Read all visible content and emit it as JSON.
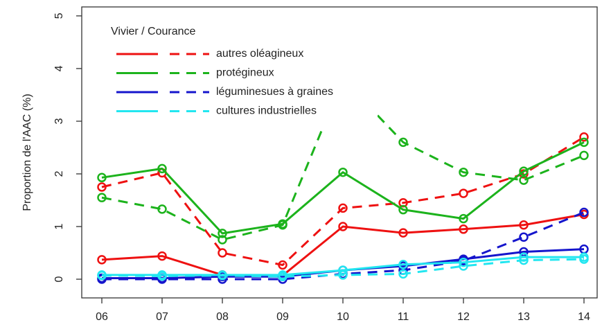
{
  "chart_data": {
    "type": "line",
    "y_label": "Proportion de l'AAC (%)",
    "legend_title": "Vivier / Courance",
    "categories": [
      "06",
      "07",
      "08",
      "09",
      "10",
      "11",
      "12",
      "13",
      "14"
    ],
    "series": [
      {
        "name": "autres oléagineux",
        "color": "#ee1111",
        "solid": [
          0.37,
          0.44,
          0.08,
          0.07,
          1.0,
          0.88,
          0.95,
          1.03,
          1.23
        ],
        "dashed": [
          1.75,
          2.02,
          0.5,
          0.27,
          1.35,
          1.45,
          1.63,
          2.0,
          2.7
        ]
      },
      {
        "name": "protégineux",
        "color": "#1cb31c",
        "solid": [
          1.93,
          2.1,
          0.87,
          1.05,
          2.03,
          1.32,
          1.15,
          2.05,
          2.6
        ],
        "dashed": [
          1.55,
          1.33,
          0.75,
          1.03,
          3.8,
          2.6,
          2.03,
          1.88,
          2.35
        ]
      },
      {
        "name": "léguminesues à graines",
        "color": "#1515cc",
        "solid": [
          0.02,
          0.02,
          0.05,
          0.05,
          0.17,
          0.25,
          0.38,
          0.52,
          0.57
        ],
        "dashed": [
          0.0,
          0.0,
          0.0,
          0.0,
          0.1,
          0.17,
          0.35,
          0.8,
          1.27
        ]
      },
      {
        "name": "cultures industrielles",
        "color": "#22e6f0",
        "solid": [
          0.08,
          0.08,
          0.08,
          0.08,
          0.17,
          0.28,
          0.32,
          0.42,
          0.42
        ],
        "dashed": [
          0.07,
          0.06,
          0.07,
          0.05,
          0.08,
          0.1,
          0.25,
          0.36,
          0.38
        ]
      }
    ],
    "ylim": [
      -0.355,
      5.17
    ],
    "yticks": [
      0,
      1,
      2,
      3,
      4,
      5
    ]
  }
}
